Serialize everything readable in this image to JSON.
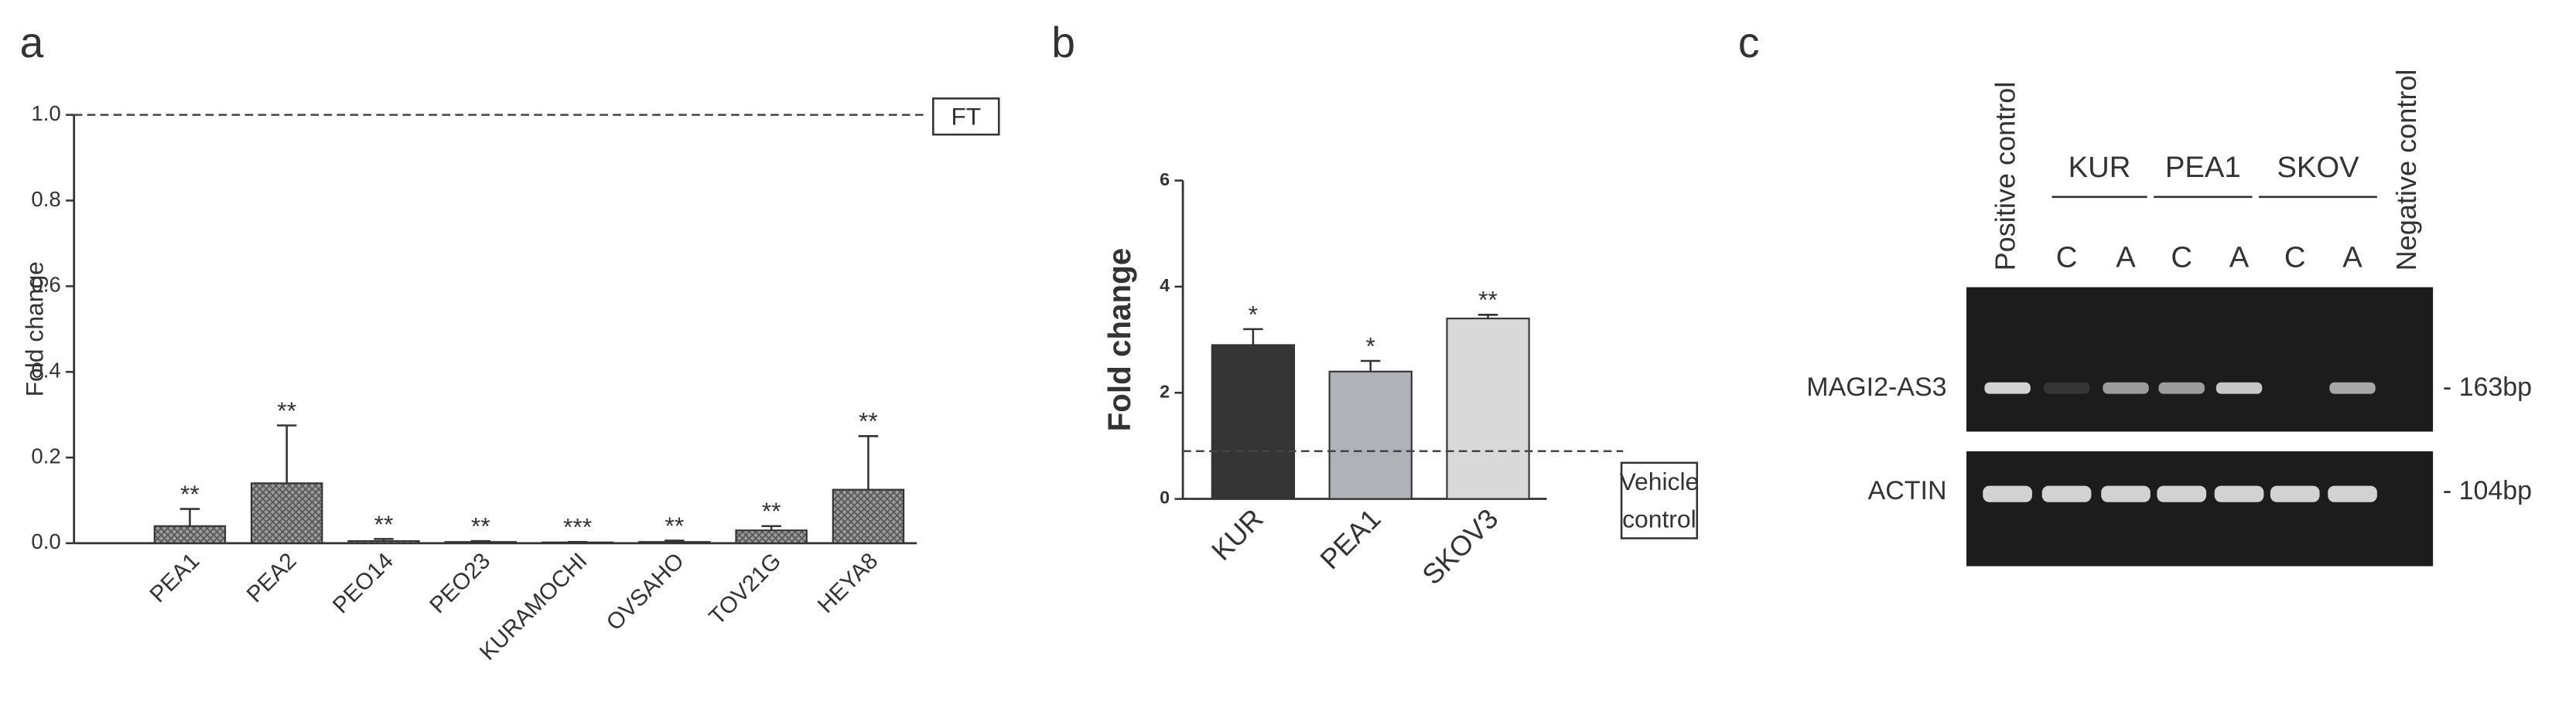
{
  "chart_data": [
    {
      "type": "bar",
      "panel": "a",
      "ylabel": "Fold change",
      "categories": [
        "PEA1",
        "PEA2",
        "PEO14",
        "PEO23",
        "KURAMOCHI",
        "OVSAHO",
        "TOV21G",
        "HEYA8"
      ],
      "values": [
        0.04,
        0.14,
        0.005,
        0.003,
        0.002,
        0.003,
        0.03,
        0.125
      ],
      "errors": [
        0.04,
        0.135,
        0.005,
        0.002,
        0.001,
        0.003,
        0.01,
        0.125
      ],
      "significance": [
        "**",
        "**",
        "**",
        "**",
        "***",
        "**",
        "**",
        "**"
      ],
      "color": "#8c8c8c",
      "hatch": true,
      "ylim": [
        0,
        1.0
      ],
      "yticks": [
        {
          "value": 0,
          "label": "0.0"
        },
        0.2,
        0.4,
        0.6,
        0.8,
        {
          "value": 1.0,
          "label": "1.0"
        }
      ],
      "ref_line": {
        "value": 1.0,
        "label": [
          "FT"
        ]
      }
    },
    {
      "type": "bar",
      "panel": "b",
      "ylabel": "Fold change",
      "categories": [
        "KUR",
        "PEA1",
        "SKOV3"
      ],
      "values": [
        2.9,
        2.4,
        3.4
      ],
      "errors": [
        0.3,
        0.2,
        0.07
      ],
      "significance": [
        "*",
        "*",
        "**"
      ],
      "colors": [
        "#353535",
        "#b1b1b8",
        "#d9d9d9"
      ],
      "ylim": [
        0,
        6
      ],
      "yticks": [
        0,
        2,
        4,
        6
      ],
      "ref_line": {
        "value": 0.9,
        "label": [
          "Vehicle",
          "control"
        ]
      }
    }
  ],
  "gel": {
    "panel": "c",
    "positive": "Positive control",
    "negative": "Negative control",
    "groups": [
      "KUR",
      "PEA1",
      "SKOV"
    ],
    "conditions": [
      "C",
      "A",
      "C",
      "A",
      "C",
      "A"
    ],
    "rows": [
      {
        "name": "MAGI2-AS3",
        "size": "- 163bp"
      },
      {
        "name": "ACTIN",
        "size": "- 104bp"
      }
    ]
  }
}
